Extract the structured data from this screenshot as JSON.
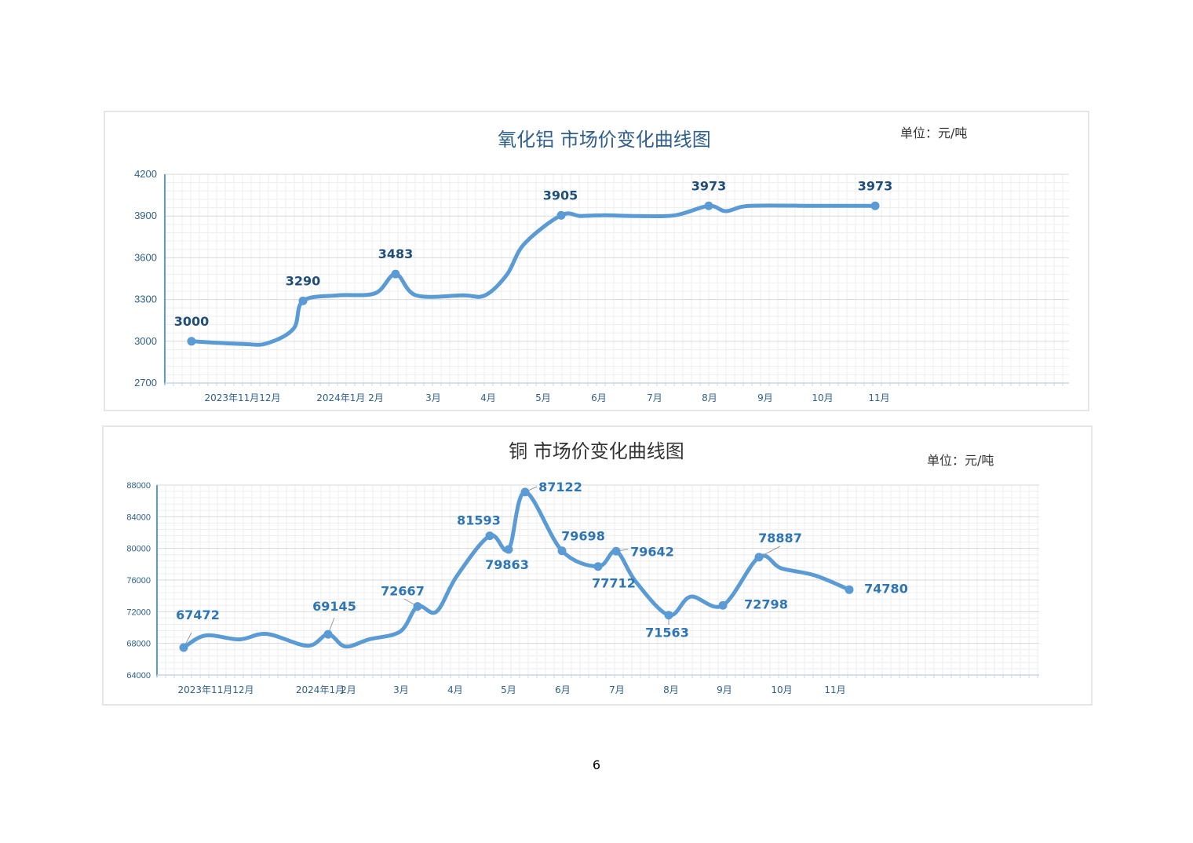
{
  "page_number": "6",
  "colors": {
    "line": "#5b9bd5",
    "label": "#1f4e79",
    "label2": "#2e75b6",
    "axis": "#2f5f8a",
    "grid_major": "#d9d9d9",
    "grid_minor": "#eeeeee"
  },
  "chart_data": [
    {
      "type": "line",
      "title": "氧化铝  市场价变化曲线图",
      "unit": "单位：元/吨",
      "ylim": [
        2700,
        4200
      ],
      "yticks": [
        "4200",
        "3900",
        "3600",
        "3300",
        "3000",
        "2700"
      ],
      "x_labels": [
        "2023年11月12月",
        "2024年1月",
        "2月",
        "3月",
        "4月",
        "5月",
        "6月",
        "7月",
        "8月",
        "9月",
        "10月",
        "11月"
      ],
      "data_points": [
        {
          "x": "2023-11",
          "value": 3000,
          "label": "3000"
        },
        {
          "x": "2024-01",
          "value": 3290,
          "label": "3290"
        },
        {
          "x": "2024-02",
          "value": 3483,
          "label": "3483"
        },
        {
          "x": "2024-05",
          "value": 3905,
          "label": "3905"
        },
        {
          "x": "2024-08",
          "value": 3973,
          "label": "3973"
        },
        {
          "x": "2024-11",
          "value": 3973,
          "label": "3973"
        }
      ],
      "series": [
        {
          "x": [
            "2023-11",
            "2023-12",
            "2023-12",
            "2024-01",
            "2024-01",
            "2024-01",
            "2024-02",
            "2024-02",
            "2024-03",
            "2024-03",
            "2024-04",
            "2024-04",
            "2024-05",
            "2024-05",
            "2024-05",
            "2024-06",
            "2024-07",
            "2024-07",
            "2024-08",
            "2024-08",
            "2024-09",
            "2024-10",
            "2024-11"
          ],
          "values": [
            3000,
            2980,
            2985,
            3090,
            3290,
            3330,
            3345,
            3483,
            3330,
            3330,
            3330,
            3480,
            3700,
            3905,
            3900,
            3905,
            3900,
            3905,
            3973,
            3935,
            3973,
            3973,
            3973
          ]
        }
      ]
    },
    {
      "type": "line",
      "title": "铜  市场价变化曲线图",
      "unit": "单位：元/吨",
      "ylim": [
        64000,
        88000
      ],
      "yticks": [
        "88000",
        "84000",
        "80000",
        "76000",
        "72000",
        "68000",
        "64000"
      ],
      "x_labels": [
        "2023年11月12月",
        "2024年1月",
        "2月",
        "3月",
        "4月",
        "5月",
        "6月",
        "7月",
        "8月",
        "9月",
        "10月",
        "11月"
      ],
      "data_points": [
        {
          "x": "2023-11",
          "value": 67472,
          "label": "67472"
        },
        {
          "x": "2024-01",
          "value": 69145,
          "label": "69145"
        },
        {
          "x": "2024-03",
          "value": 72667,
          "label": "72667"
        },
        {
          "x": "2024-04",
          "value": 81593,
          "label": "81593"
        },
        {
          "x": "2024-05",
          "value": 79863,
          "label": "79863"
        },
        {
          "x": "2024-05",
          "value": 87122,
          "label": "87122"
        },
        {
          "x": "2024-06",
          "value": 79698,
          "label": "79698"
        },
        {
          "x": "2024-06",
          "value": 77712,
          "label": "77712"
        },
        {
          "x": "2024-07",
          "value": 79642,
          "label": "79642"
        },
        {
          "x": "2024-08",
          "value": 71563,
          "label": "71563"
        },
        {
          "x": "2024-09",
          "value": 72798,
          "label": "72798"
        },
        {
          "x": "2024-09",
          "value": 78887,
          "label": "78887"
        },
        {
          "x": "2024-11",
          "value": 74780,
          "label": "74780"
        }
      ],
      "series": [
        {
          "x": [
            "2023-11",
            "2023-11",
            "2023-12",
            "2023-12",
            "2024-01",
            "2024-01",
            "2024-02",
            "2024-02",
            "2024-03",
            "2024-03",
            "2024-04",
            "2024-04",
            "2024-05",
            "2024-05",
            "2024-06",
            "2024-06",
            "2024-06",
            "2024-07",
            "2024-07",
            "2024-08",
            "2024-08",
            "2024-09",
            "2024-09",
            "2024-10",
            "2024-10",
            "2024-11"
          ],
          "values": [
            67472,
            69000,
            68500,
            69200,
            67700,
            69145,
            67600,
            68500,
            69500,
            72667,
            72000,
            76500,
            81593,
            79863,
            87122,
            79698,
            77712,
            79642,
            75800,
            71563,
            73900,
            72798,
            78887,
            77500,
            76600,
            74780
          ]
        }
      ]
    }
  ]
}
